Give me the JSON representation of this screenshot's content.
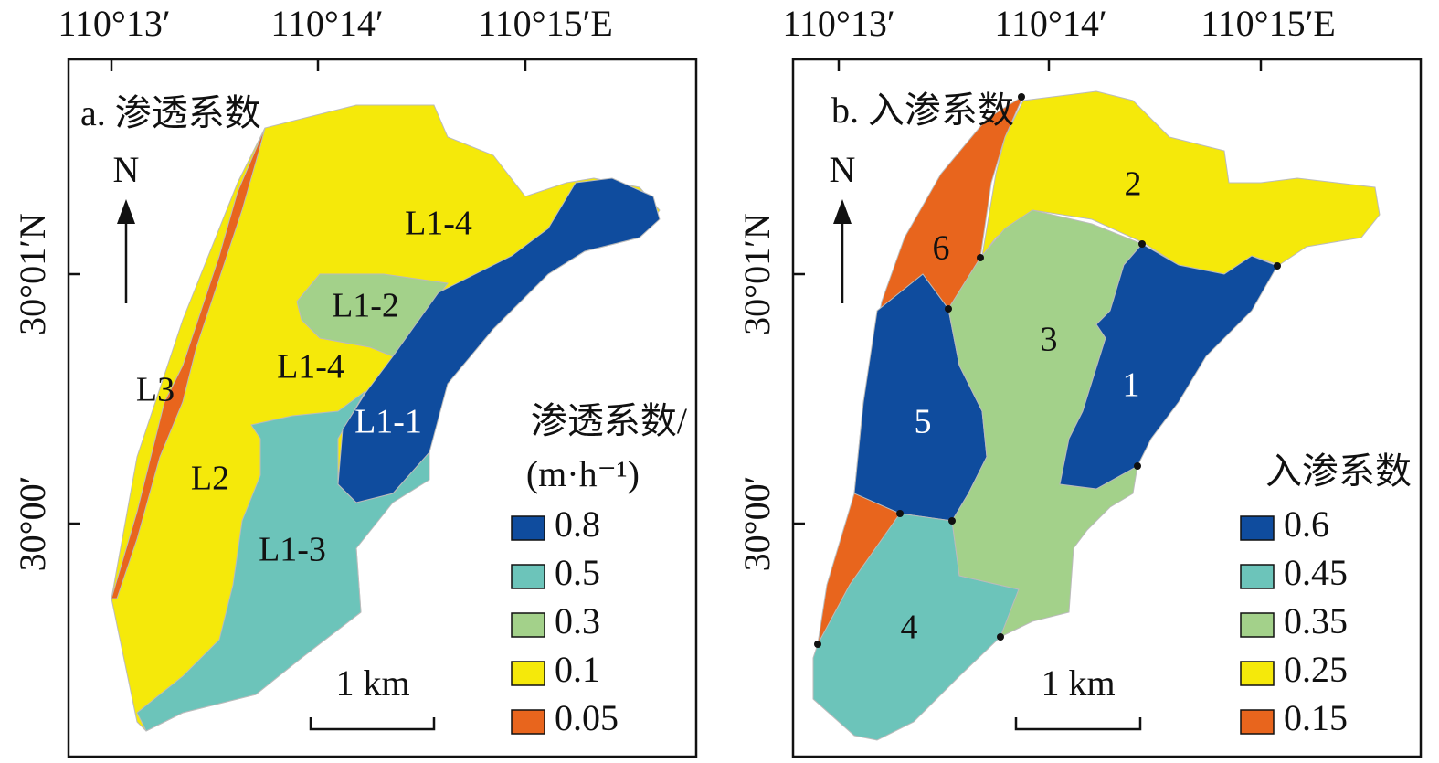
{
  "panels": [
    {
      "label": "a. 渗透系数",
      "x_ticks": [
        "110°13′",
        "110°14′",
        "110°15′E"
      ],
      "y_ticks": [
        "30°01′N",
        "30°00′"
      ],
      "north": "N",
      "scale": "1 km",
      "zones": [
        "L1-4",
        "L1-2",
        "L1-4",
        "L1-1",
        "L3",
        "L2",
        "L1-3"
      ],
      "legend": {
        "title": [
          "渗透系数/",
          "(m·h⁻¹)"
        ],
        "items": [
          {
            "label": "0.8",
            "color": "#0f4c9e"
          },
          {
            "label": "0.5",
            "color": "#6cc4ba"
          },
          {
            "label": "0.3",
            "color": "#a3d18a"
          },
          {
            "label": "0.1",
            "color": "#f5e90a"
          },
          {
            "label": "0.05",
            "color": "#e8651d"
          }
        ]
      }
    },
    {
      "label": "b. 入渗系数",
      "x_ticks": [
        "110°13′",
        "110°14′",
        "110°15′E"
      ],
      "y_ticks": [
        "30°01′N",
        "30°00′"
      ],
      "north": "N",
      "scale": "1 km",
      "zones": [
        "2",
        "6",
        "3",
        "1",
        "5",
        "4"
      ],
      "legend": {
        "title": [
          "入渗系数"
        ],
        "items": [
          {
            "label": "0.6",
            "color": "#0f4c9e"
          },
          {
            "label": "0.45",
            "color": "#6cc4ba"
          },
          {
            "label": "0.35",
            "color": "#a3d18a"
          },
          {
            "label": "0.25",
            "color": "#f5e90a"
          },
          {
            "label": "0.15",
            "color": "#e8651d"
          }
        ]
      }
    }
  ]
}
